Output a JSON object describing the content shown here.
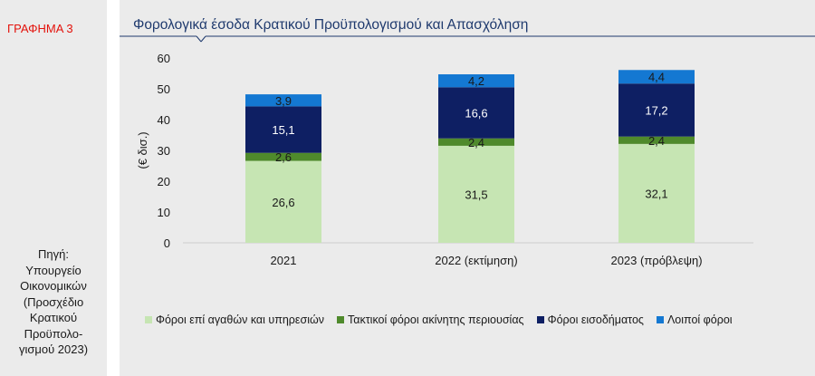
{
  "sidebar": {
    "figure_label": "ΓΡΑΦΗΜΑ 3",
    "source_lines": [
      "Πηγή:",
      "Υπουργείο",
      "Οικονομικών",
      "(Προσχέδιο",
      "Κρατικού",
      "Προϋπολο-",
      "γισμού 2023)"
    ]
  },
  "chart_data": {
    "type": "bar",
    "stacked": true,
    "title": "Φορολογικά έσοδα Κρατικού Προϋπολογισμού και Απασχόληση",
    "ylabel": "(€ δισ.)",
    "xlabel": "",
    "ylim": [
      0,
      60
    ],
    "yticks": [
      0,
      10,
      20,
      30,
      40,
      50,
      60
    ],
    "categories": [
      "2021",
      "2022 (εκτίμηση)",
      "2023 (πρόβλεψη)"
    ],
    "series": [
      {
        "name": "Φόροι επί αγαθών και υπηρεσιών",
        "values": [
          26.6,
          31.5,
          32.1
        ],
        "labels": [
          "26,6",
          "31,5",
          "32,1"
        ],
        "color": "#c6e5b3",
        "label_color": "#1a1a1a"
      },
      {
        "name": "Τακτικοί φόροι ακίνητης περιουσίας",
        "values": [
          2.6,
          2.4,
          2.4
        ],
        "labels": [
          "2,6",
          "2,4",
          "2,4"
        ],
        "color": "#4f8a2c",
        "label_color": "#1a1a1a"
      },
      {
        "name": "Φόροι εισοδήματος",
        "values": [
          15.1,
          16.6,
          17.2
        ],
        "labels": [
          "15,1",
          "16,6",
          "17,2"
        ],
        "color": "#0e1f63",
        "label_color": "#ffffff"
      },
      {
        "name": "Λοιποί φόροι",
        "values": [
          3.9,
          4.2,
          4.4
        ],
        "labels": [
          "3,9",
          "4,2",
          "4,4"
        ],
        "color": "#1478d2",
        "label_color": "#1a1a1a"
      }
    ],
    "grid": false,
    "legend_position": "bottom"
  },
  "colors": {
    "title": "#1f3a6e",
    "figure_label": "#e3120b",
    "background": "#ebebeb"
  }
}
